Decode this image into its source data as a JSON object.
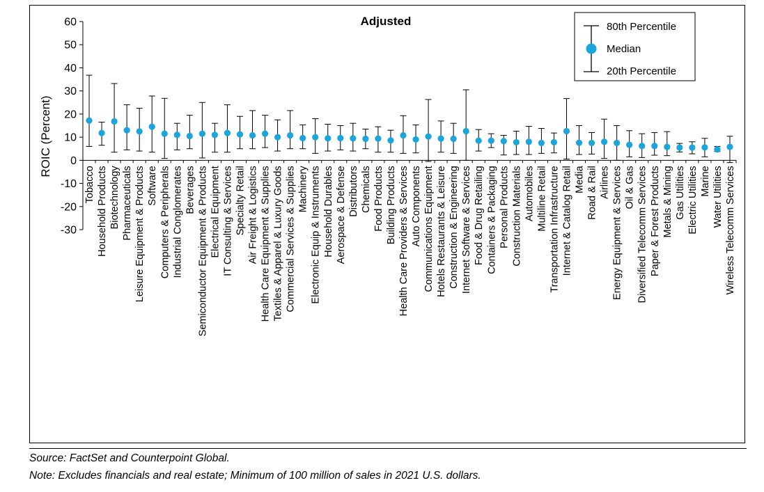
{
  "chart_data": {
    "type": "scatter",
    "title": "Adjusted",
    "ylabel": "ROIC (Percent)",
    "ylim": [
      -30,
      60
    ],
    "yticks": [
      60,
      50,
      40,
      30,
      20,
      10,
      0,
      -10,
      -20,
      -30
    ],
    "grid": false,
    "legend_position": "top-right",
    "legend": {
      "top": "80th Percentile",
      "middle": "Median",
      "bottom": "20th Percentile"
    },
    "marker_color": "#1aa6dc",
    "categories": [
      "Tobacco",
      "Household Products",
      "Biotechnology",
      "Pharmaceuticals",
      "Leisure Equipment & Products",
      "Software",
      "Computers & Peripherals",
      "Industrial Conglomerates",
      "Beverages",
      "Semiconductor Equipment & Products",
      "Electrical Equipment",
      "IT Consulting & Services",
      "Specialty Retail",
      "Air Freight & Logistics",
      "Health Care Equipment & Supplies",
      "Textiles & Apparel & Luxury Goods",
      "Commercial Services & Supplies",
      "Machinery",
      "Electronic Equip & Instruments",
      "Household Durables",
      "Aerospace & Defense",
      "Distributors",
      "Chemicals",
      "Food Products",
      "Building Products",
      "Health Care Providers & Services",
      "Auto Components",
      "Communications Equipment",
      "Hotels Restaurants & Leisure",
      "Construction & Engineering",
      "Internet Software & Services",
      "Food & Drug Retailing",
      "Containers & Packaging",
      "Personal Products",
      "Construction Materials",
      "Automobiles",
      "Multiline Retail",
      "Transportation Infrastructure",
      "Internet & Catalog Retail",
      "Media",
      "Road & Rail",
      "Airlines",
      "Energy Equipment & Services",
      "Oil & Gas",
      "Diversified Telecomm Services",
      "Paper & Forest Products",
      "Metals & Mining",
      "Gas Utilities",
      "Electric Utilities",
      "Marine",
      "Water Utilities",
      "Wireless Telecomm Services"
    ],
    "series": [
      {
        "name": "Median",
        "values": [
          17.2,
          11.8,
          16.8,
          13.0,
          12.5,
          14.5,
          11.5,
          11.0,
          10.5,
          11.5,
          11.0,
          11.8,
          11.2,
          10.8,
          11.5,
          10.0,
          10.8,
          9.6,
          10.0,
          9.5,
          9.6,
          9.5,
          9.3,
          9.4,
          8.6,
          10.8,
          9.0,
          10.3,
          9.4,
          9.3,
          12.6,
          8.5,
          8.5,
          8.3,
          7.8,
          8.0,
          7.5,
          7.8,
          12.6,
          7.6,
          7.5,
          8.0,
          7.5,
          6.7,
          6.2,
          6.2,
          5.8,
          5.5,
          5.5,
          5.6,
          4.7,
          5.8
        ]
      },
      {
        "name": "80th Percentile",
        "values": [
          36.8,
          16.5,
          33.2,
          24.0,
          22.5,
          27.8,
          26.8,
          16.0,
          19.5,
          25.0,
          16.0,
          24.0,
          19.0,
          21.5,
          19.5,
          17.5,
          21.5,
          15.3,
          18.0,
          15.6,
          15.0,
          16.0,
          13.5,
          14.5,
          13.0,
          19.3,
          15.3,
          26.3,
          17.0,
          16.0,
          30.5,
          13.3,
          11.5,
          10.8,
          12.6,
          14.7,
          13.8,
          11.8,
          26.7,
          15.0,
          12.0,
          17.8,
          15.0,
          12.8,
          11.5,
          12.0,
          12.4,
          7.3,
          8.0,
          9.5,
          6.0,
          10.4
        ]
      },
      {
        "name": "20th Percentile",
        "values": [
          6.0,
          6.5,
          3.5,
          4.5,
          4.0,
          3.5,
          0.8,
          4.5,
          5.0,
          1.0,
          3.5,
          3.5,
          5.0,
          5.0,
          5.5,
          4.0,
          5.0,
          5.0,
          3.0,
          4.0,
          4.5,
          4.0,
          5.0,
          3.5,
          3.5,
          3.0,
          3.2,
          -0.5,
          3.5,
          3.0,
          0.0,
          4.0,
          5.5,
          2.3,
          2.5,
          2.5,
          3.0,
          3.2,
          0.5,
          2.5,
          2.7,
          0.8,
          0.0,
          1.5,
          1.2,
          2.2,
          2.0,
          3.6,
          2.8,
          1.5,
          3.8,
          -1.0
        ]
      }
    ]
  },
  "footer": {
    "source": "Source: FactSet and Counterpoint Global.",
    "note": "Note: Excludes financials and real estate; Minimum of 100 million of sales in 2021 U.S. dollars."
  }
}
